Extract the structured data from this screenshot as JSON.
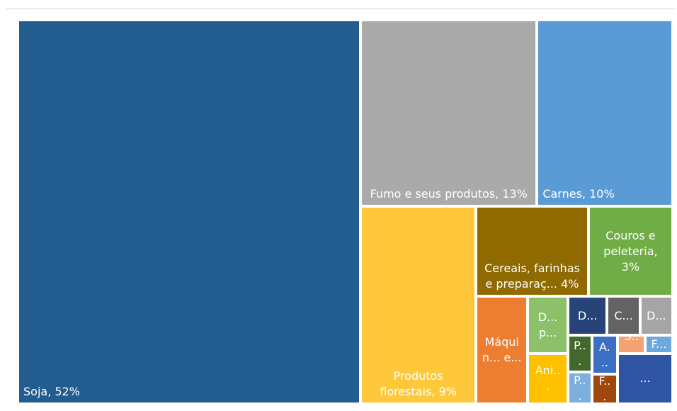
{
  "chart_data": {
    "type": "treemap",
    "categories": [
      "Soja, 52%",
      "Fumo e seus produtos, 13%",
      "Carnes, 10%",
      "Produtos florestais, 9%",
      "Cereais, farinhas e preparaç... 4%",
      "Couros e peleteria, 3%",
      "Máquin... e...",
      "D... p...",
      "Ani...",
      "D...",
      "C...",
      "D...",
      "P...",
      "P...",
      "A...",
      "F...",
      "S...",
      "F...",
      "..."
    ],
    "values": [
      52,
      13,
      10,
      9,
      4,
      3,
      2.2,
      0.9,
      0.8,
      0.6,
      0.5,
      0.5,
      0.35,
      0.3,
      0.4,
      0.3,
      0.2,
      0.2,
      1.1
    ],
    "colors": [
      "#235c8e",
      "#aaaaaa",
      "#5b9bd5",
      "#ffc83a",
      "#8f6a00",
      "#70ad47",
      "#ed7d31",
      "#8cc16a",
      "#ffc000",
      "#264478",
      "#636363",
      "#a5a5a5",
      "#43682b",
      "#7cafdd",
      "#3b6fc4",
      "#9e480e",
      "#f4a173",
      "#6fa8dc",
      "#2f55a4"
    ]
  }
}
